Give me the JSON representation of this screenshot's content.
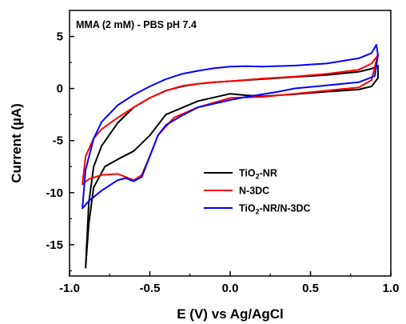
{
  "chart_data": {
    "type": "line",
    "title": "",
    "annotation": "MMA (2 mM) - PBS pH 7.4",
    "xlabel": "E (V) vs Ag/AgCl",
    "ylabel": "Current (µA)",
    "xlim": [
      -1.0,
      1.0
    ],
    "ylim": [
      -18,
      7.5
    ],
    "x_ticks": [
      -1.0,
      -0.5,
      0.0,
      0.5,
      1.0
    ],
    "x_tick_labels": [
      "-1.0",
      "-0.5",
      "0.0",
      "0.5",
      "1.0"
    ],
    "y_ticks": [
      -15,
      -10,
      -5,
      0,
      5
    ],
    "y_tick_labels": [
      "-15",
      "-10",
      "-5",
      "0",
      "5"
    ],
    "grid": false,
    "legend_position": "bottom-right",
    "series": [
      {
        "name": "TiO₂-NR",
        "name_parts": [
          "TiO",
          "2",
          "-NR"
        ],
        "color": "#000000",
        "x": [
          0.0,
          -0.2,
          -0.4,
          -0.5,
          -0.6,
          -0.7,
          -0.78,
          -0.85,
          -0.88,
          -0.9,
          -0.9,
          -0.88,
          -0.85,
          -0.8,
          -0.7,
          -0.6,
          -0.5,
          -0.4,
          -0.3,
          -0.2,
          -0.1,
          0.0,
          0.2,
          0.4,
          0.6,
          0.8,
          0.88,
          0.92,
          0.92,
          0.88,
          0.8,
          0.6,
          0.4,
          0.2,
          0.1,
          0.0
        ],
        "y": [
          -0.5,
          -1.2,
          -2.5,
          -4.5,
          -6.0,
          -6.8,
          -7.5,
          -9.5,
          -13.0,
          -17.2,
          -17.2,
          -11.0,
          -7.5,
          -5.5,
          -3.3,
          -1.8,
          -0.9,
          -0.2,
          0.2,
          0.45,
          0.6,
          0.7,
          0.9,
          1.1,
          1.3,
          1.6,
          1.9,
          2.2,
          1.0,
          0.2,
          -0.1,
          -0.3,
          -0.55,
          -0.75,
          -0.65,
          -0.5
        ]
      },
      {
        "name": "N-3DC",
        "name_parts": [
          "N-3DC"
        ],
        "color": "#ff0000",
        "x": [
          0.0,
          -0.2,
          -0.35,
          -0.45,
          -0.5,
          -0.55,
          -0.6,
          -0.7,
          -0.8,
          -0.88,
          -0.92,
          -0.92,
          -0.9,
          -0.85,
          -0.8,
          -0.7,
          -0.6,
          -0.5,
          -0.4,
          -0.3,
          -0.2,
          -0.1,
          0.0,
          0.2,
          0.4,
          0.6,
          0.8,
          0.88,
          0.92,
          0.92,
          0.88,
          0.8,
          0.6,
          0.4,
          0.2,
          0.1,
          0.0
        ],
        "y": [
          -0.9,
          -1.8,
          -2.8,
          -4.5,
          -6.5,
          -8.3,
          -8.8,
          -8.2,
          -8.3,
          -8.7,
          -9.2,
          -9.2,
          -6.5,
          -4.8,
          -3.9,
          -2.8,
          -1.8,
          -0.9,
          -0.2,
          0.25,
          0.45,
          0.6,
          0.7,
          0.95,
          1.15,
          1.4,
          1.8,
          2.4,
          3.2,
          3.3,
          0.8,
          0.1,
          -0.2,
          -0.5,
          -0.8,
          -0.85,
          -0.9
        ]
      },
      {
        "name": "TiO₂-NR/N-3DC",
        "name_parts": [
          "TiO",
          "2",
          "-NR/N-3DC"
        ],
        "color": "#0000ff",
        "x": [
          0.3,
          0.1,
          0.0,
          -0.2,
          -0.3,
          -0.4,
          -0.45,
          -0.5,
          -0.55,
          -0.6,
          -0.62,
          -0.65,
          -0.7,
          -0.8,
          -0.88,
          -0.92,
          -0.92,
          -0.9,
          -0.85,
          -0.8,
          -0.7,
          -0.6,
          -0.5,
          -0.4,
          -0.3,
          -0.2,
          -0.1,
          0.0,
          0.1,
          0.2,
          0.4,
          0.6,
          0.8,
          0.88,
          0.91,
          0.92,
          0.9,
          0.85,
          0.8,
          0.6,
          0.4,
          0.3
        ],
        "y": [
          -0.3,
          -0.8,
          -1.1,
          -1.8,
          -2.6,
          -3.5,
          -4.5,
          -6.5,
          -8.5,
          -8.9,
          -8.8,
          -8.6,
          -8.8,
          -9.8,
          -10.8,
          -11.5,
          -11.5,
          -7.8,
          -4.8,
          -3.2,
          -1.6,
          -0.6,
          0.2,
          0.9,
          1.4,
          1.7,
          1.95,
          2.1,
          2.15,
          2.1,
          2.2,
          2.4,
          2.9,
          3.4,
          4.2,
          3.2,
          1.2,
          0.9,
          0.6,
          0.3,
          0.0,
          -0.3
        ]
      }
    ]
  }
}
